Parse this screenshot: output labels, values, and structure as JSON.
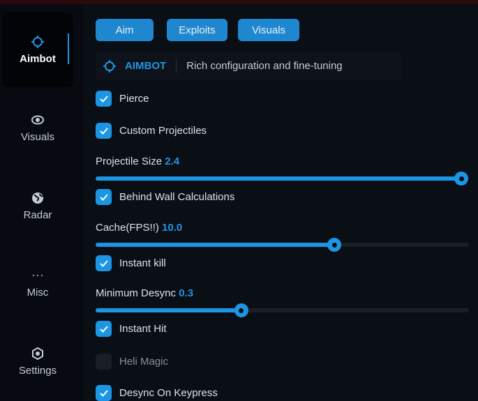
{
  "colors": {
    "accent": "#1b95e4",
    "background": "#0a0e15"
  },
  "sidebar": {
    "items": [
      {
        "label": "Aimbot",
        "icon": "crosshair-icon",
        "active": true
      },
      {
        "label": "Visuals",
        "icon": "eye-icon"
      },
      {
        "label": "Radar",
        "icon": "globe-icon"
      },
      {
        "label": "Misc",
        "icon": "more-icon"
      },
      {
        "label": "Settings",
        "icon": "gear-icon"
      }
    ]
  },
  "tabs": [
    {
      "label": "Aim"
    },
    {
      "label": "Exploits"
    },
    {
      "label": "Visuals"
    }
  ],
  "header": {
    "title": "AIMBOT",
    "description": "Rich configuration and fine-tuning"
  },
  "options": {
    "pierce": {
      "label": "Pierce",
      "checked": true
    },
    "custom_projectiles": {
      "label": "Custom Projectiles",
      "checked": true
    },
    "projectile_size": {
      "label": "Projectile Size",
      "value": "2.4",
      "fill_percent": 98
    },
    "behind_wall": {
      "label": "Behind Wall Calculations",
      "checked": true
    },
    "cache": {
      "label": "Cache(FPS!!)",
      "value": "10.0",
      "fill_percent": 64
    },
    "instant_kill": {
      "label": "Instant kill",
      "checked": true
    },
    "min_desync": {
      "label": "Minimum Desync",
      "value": "0.3",
      "fill_percent": 39
    },
    "instant_hit": {
      "label": "Instant Hit",
      "checked": true
    },
    "heli_magic": {
      "label": "Heli Magic",
      "checked": false
    },
    "desync_keypress": {
      "label": "Desync On Keypress",
      "checked": true
    }
  }
}
